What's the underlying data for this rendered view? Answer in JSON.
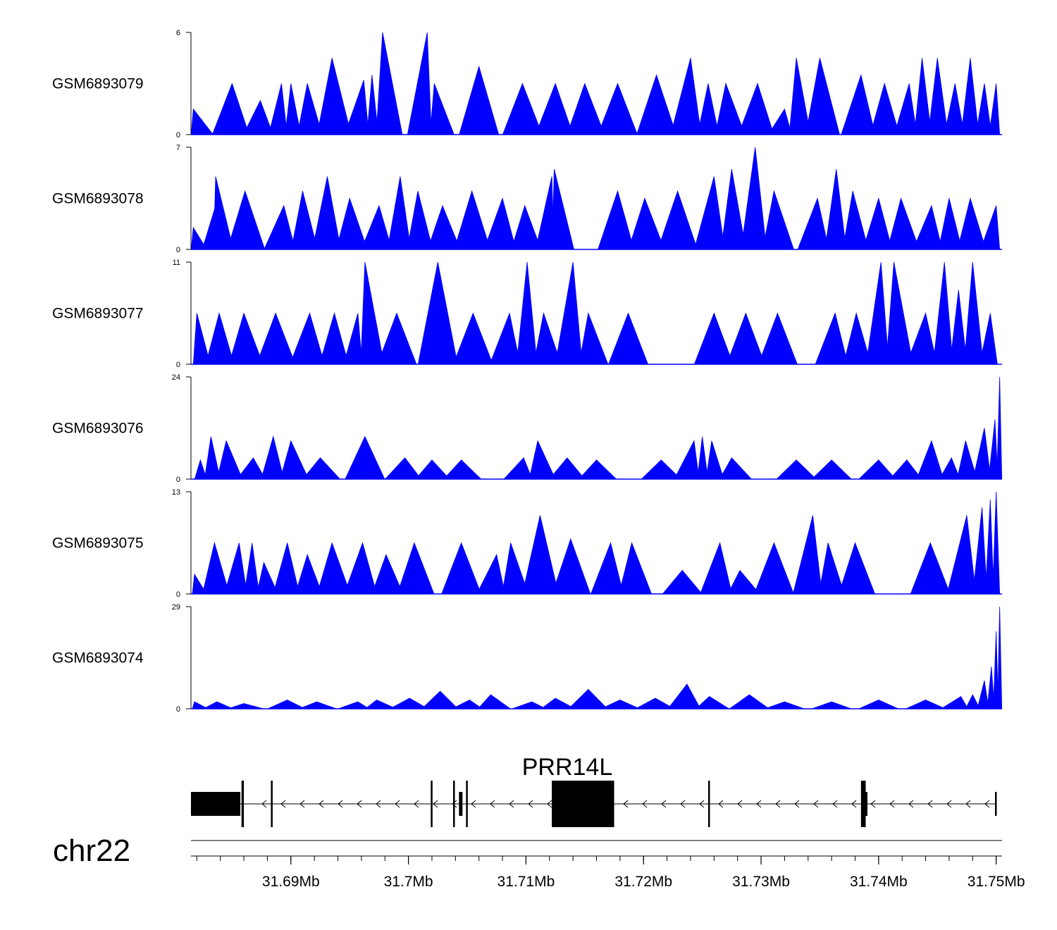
{
  "colors": {
    "signal": "#0000ff",
    "axis": "#000000",
    "gene": "#000000",
    "background": "#ffffff"
  },
  "chart_data": {
    "type": "area",
    "title": "",
    "xlabel": "",
    "chromosome": "chr22",
    "xlim_mb": [
      31.6815,
      31.7505
    ],
    "x_ticks": [
      {
        "value": 31.69,
        "label": "31.69Mb"
      },
      {
        "value": 31.7,
        "label": "31.7Mb"
      },
      {
        "value": 31.71,
        "label": "31.71Mb"
      },
      {
        "value": 31.72,
        "label": "31.72Mb"
      },
      {
        "value": 31.73,
        "label": "31.73Mb"
      },
      {
        "value": 31.74,
        "label": "31.74Mb"
      },
      {
        "value": 31.75,
        "label": "31.75Mb"
      }
    ],
    "tracks": [
      {
        "name": "GSM6893079",
        "ymax": 6,
        "ymin": 0,
        "ymax_label": "6",
        "ymin_label": "0",
        "x_mb": [
          31.6817,
          31.685,
          31.6874,
          31.6892,
          31.69,
          31.6914,
          31.6935,
          31.6962,
          31.6969,
          31.6978,
          31.7016,
          31.7022,
          31.706,
          31.7097,
          31.7125,
          31.715,
          31.7178,
          31.7211,
          31.724,
          31.7255,
          31.727,
          31.7297,
          31.732,
          31.733,
          31.735,
          31.7385,
          31.7405,
          31.7426,
          31.7437,
          31.745,
          31.7465,
          31.7478,
          31.749,
          31.75
        ],
        "values": [
          1.5,
          3,
          2,
          3,
          3,
          3,
          4.5,
          3.2,
          3.5,
          6,
          6,
          3,
          4,
          3,
          3,
          3,
          3,
          3.5,
          4.5,
          3,
          3,
          3,
          1.5,
          4.5,
          4.5,
          3.5,
          3,
          3,
          4.5,
          4.5,
          3,
          4.5,
          3,
          3
        ]
      },
      {
        "name": "GSM6893078",
        "ymax": 7,
        "ymin": 0,
        "ymax_label": "7",
        "ymin_label": "0",
        "x_mb": [
          31.6817,
          31.6836,
          31.6836,
          31.6861,
          31.6894,
          31.691,
          31.6931,
          31.695,
          31.6975,
          31.6993,
          31.7008,
          31.7029,
          31.7054,
          31.708,
          31.7099,
          31.7122,
          31.7124,
          31.7178,
          31.7201,
          31.7229,
          31.726,
          31.7275,
          31.7295,
          31.7311,
          31.7348,
          31.7364,
          31.7378,
          31.74,
          31.7419,
          31.7445,
          31.746,
          31.7478,
          31.75
        ],
        "values": [
          1.5,
          3,
          5,
          4,
          3,
          4,
          5,
          3.5,
          3,
          5,
          4,
          3,
          4,
          3.5,
          3,
          5,
          5.5,
          4,
          3.5,
          4,
          5,
          5.5,
          7,
          4,
          3.5,
          5.5,
          4,
          3.5,
          3.5,
          3,
          3.5,
          3.5,
          3
        ]
      },
      {
        "name": "GSM6893077",
        "ymax": 11,
        "ymin": 0,
        "ymax_label": "11",
        "ymin_label": "0",
        "x_mb": [
          31.682,
          31.6839,
          31.686,
          31.6887,
          31.6916,
          31.6937,
          31.6957,
          31.6963,
          31.699,
          31.7025,
          31.7055,
          31.7086,
          31.7101,
          31.7115,
          31.714,
          31.7153,
          31.7187,
          31.726,
          31.7287,
          31.7314,
          31.7363,
          31.7381,
          31.7402,
          31.7413,
          31.744,
          31.7456,
          31.7468,
          31.748,
          31.7495
        ],
        "values": [
          5.5,
          5.5,
          5.5,
          5.5,
          5.5,
          5.5,
          5.5,
          11,
          5.5,
          11,
          5.5,
          5.5,
          11,
          5.5,
          11,
          5.5,
          5.5,
          5.5,
          5.5,
          5.5,
          5.5,
          5.5,
          11,
          11,
          5.5,
          11,
          8,
          11,
          5.5
        ]
      },
      {
        "name": "GSM6893076",
        "ymax": 24,
        "ymin": 0,
        "ymax_label": "24",
        "ymin_label": "0",
        "x_mb": [
          31.6823,
          31.6832,
          31.6845,
          31.6868,
          31.6885,
          31.69,
          31.6925,
          31.6963,
          31.6997,
          31.702,
          31.7045,
          31.7098,
          31.711,
          31.7135,
          31.716,
          31.7215,
          31.7243,
          31.725,
          31.7258,
          31.7275,
          31.733,
          31.736,
          31.74,
          31.7424,
          31.7445,
          31.7462,
          31.7474,
          31.749,
          31.7499,
          31.7503
        ],
        "values": [
          4.5,
          10,
          9,
          5,
          10,
          9,
          5,
          10,
          5,
          4.5,
          4.5,
          5,
          9,
          5,
          4.5,
          4.5,
          9,
          10,
          9,
          5,
          4.5,
          4.5,
          4.5,
          4.5,
          9,
          5,
          9,
          12,
          14,
          24
        ]
      },
      {
        "name": "GSM6893075",
        "ymax": 13,
        "ymin": 0,
        "ymax_label": "13",
        "ymin_label": "0",
        "x_mb": [
          31.6818,
          31.6835,
          31.6856,
          31.6867,
          31.6877,
          31.6897,
          31.6914,
          31.6935,
          31.6961,
          31.6981,
          31.7005,
          31.7045,
          31.7075,
          31.7087,
          31.7112,
          31.7138,
          31.7172,
          31.719,
          31.7233,
          31.7265,
          31.7282,
          31.7311,
          31.7344,
          31.7357,
          31.738,
          31.7444,
          31.7475,
          31.7488,
          31.7495,
          31.75
        ],
        "values": [
          2.5,
          6.5,
          6.5,
          6.5,
          4,
          6.5,
          5,
          6.5,
          6.5,
          5,
          6.5,
          6.5,
          5,
          6.5,
          10,
          7,
          6.5,
          6.5,
          3,
          6.5,
          3,
          6.5,
          10,
          6.5,
          6.5,
          6.5,
          10,
          11,
          12,
          13
        ]
      },
      {
        "name": "GSM6893074",
        "ymax": 29,
        "ymin": 0,
        "ymax_label": "29",
        "ymin_label": "0",
        "x_mb": [
          31.6818,
          31.6837,
          31.686,
          31.6897,
          31.6922,
          31.6957,
          31.6973,
          31.7001,
          31.7027,
          31.7052,
          31.707,
          31.7105,
          31.7125,
          31.7153,
          31.718,
          31.721,
          31.7237,
          31.7256,
          31.729,
          31.732,
          31.736,
          31.74,
          31.744,
          31.747,
          31.748,
          31.749,
          31.7496,
          31.75,
          31.7503
        ],
        "values": [
          2,
          2,
          1.5,
          2.5,
          2,
          2,
          2.5,
          3,
          5,
          2.5,
          4,
          2,
          3,
          5.5,
          2.5,
          3,
          7,
          3.5,
          4,
          2,
          2,
          2.5,
          2.5,
          3.5,
          4,
          8,
          12,
          22,
          29
        ]
      }
    ],
    "gene": {
      "name": "PRR14L",
      "strand": "-",
      "start_mb": 31.6815,
      "end_mb": 31.75,
      "exons": [
        {
          "start": 31.6815,
          "end": 31.6857,
          "height": "medium"
        },
        {
          "start": 31.6858,
          "end": 31.686,
          "height": "large"
        },
        {
          "start": 31.6883,
          "end": 31.6884,
          "height": "large"
        },
        {
          "start": 31.7019,
          "end": 31.702,
          "height": "large"
        },
        {
          "start": 31.7038,
          "end": 31.7039,
          "height": "large"
        },
        {
          "start": 31.7043,
          "end": 31.7046,
          "height": "medium"
        },
        {
          "start": 31.7049,
          "end": 31.705,
          "height": "large"
        },
        {
          "start": 31.7122,
          "end": 31.7175,
          "height": "xlarge"
        },
        {
          "start": 31.7255,
          "end": 31.7256,
          "height": "large"
        },
        {
          "start": 31.7385,
          "end": 31.7389,
          "height": "large"
        },
        {
          "start": 31.7389,
          "end": 31.739,
          "height": "medium"
        },
        {
          "start": 31.7499,
          "end": 31.75,
          "height": "medium"
        }
      ]
    }
  }
}
